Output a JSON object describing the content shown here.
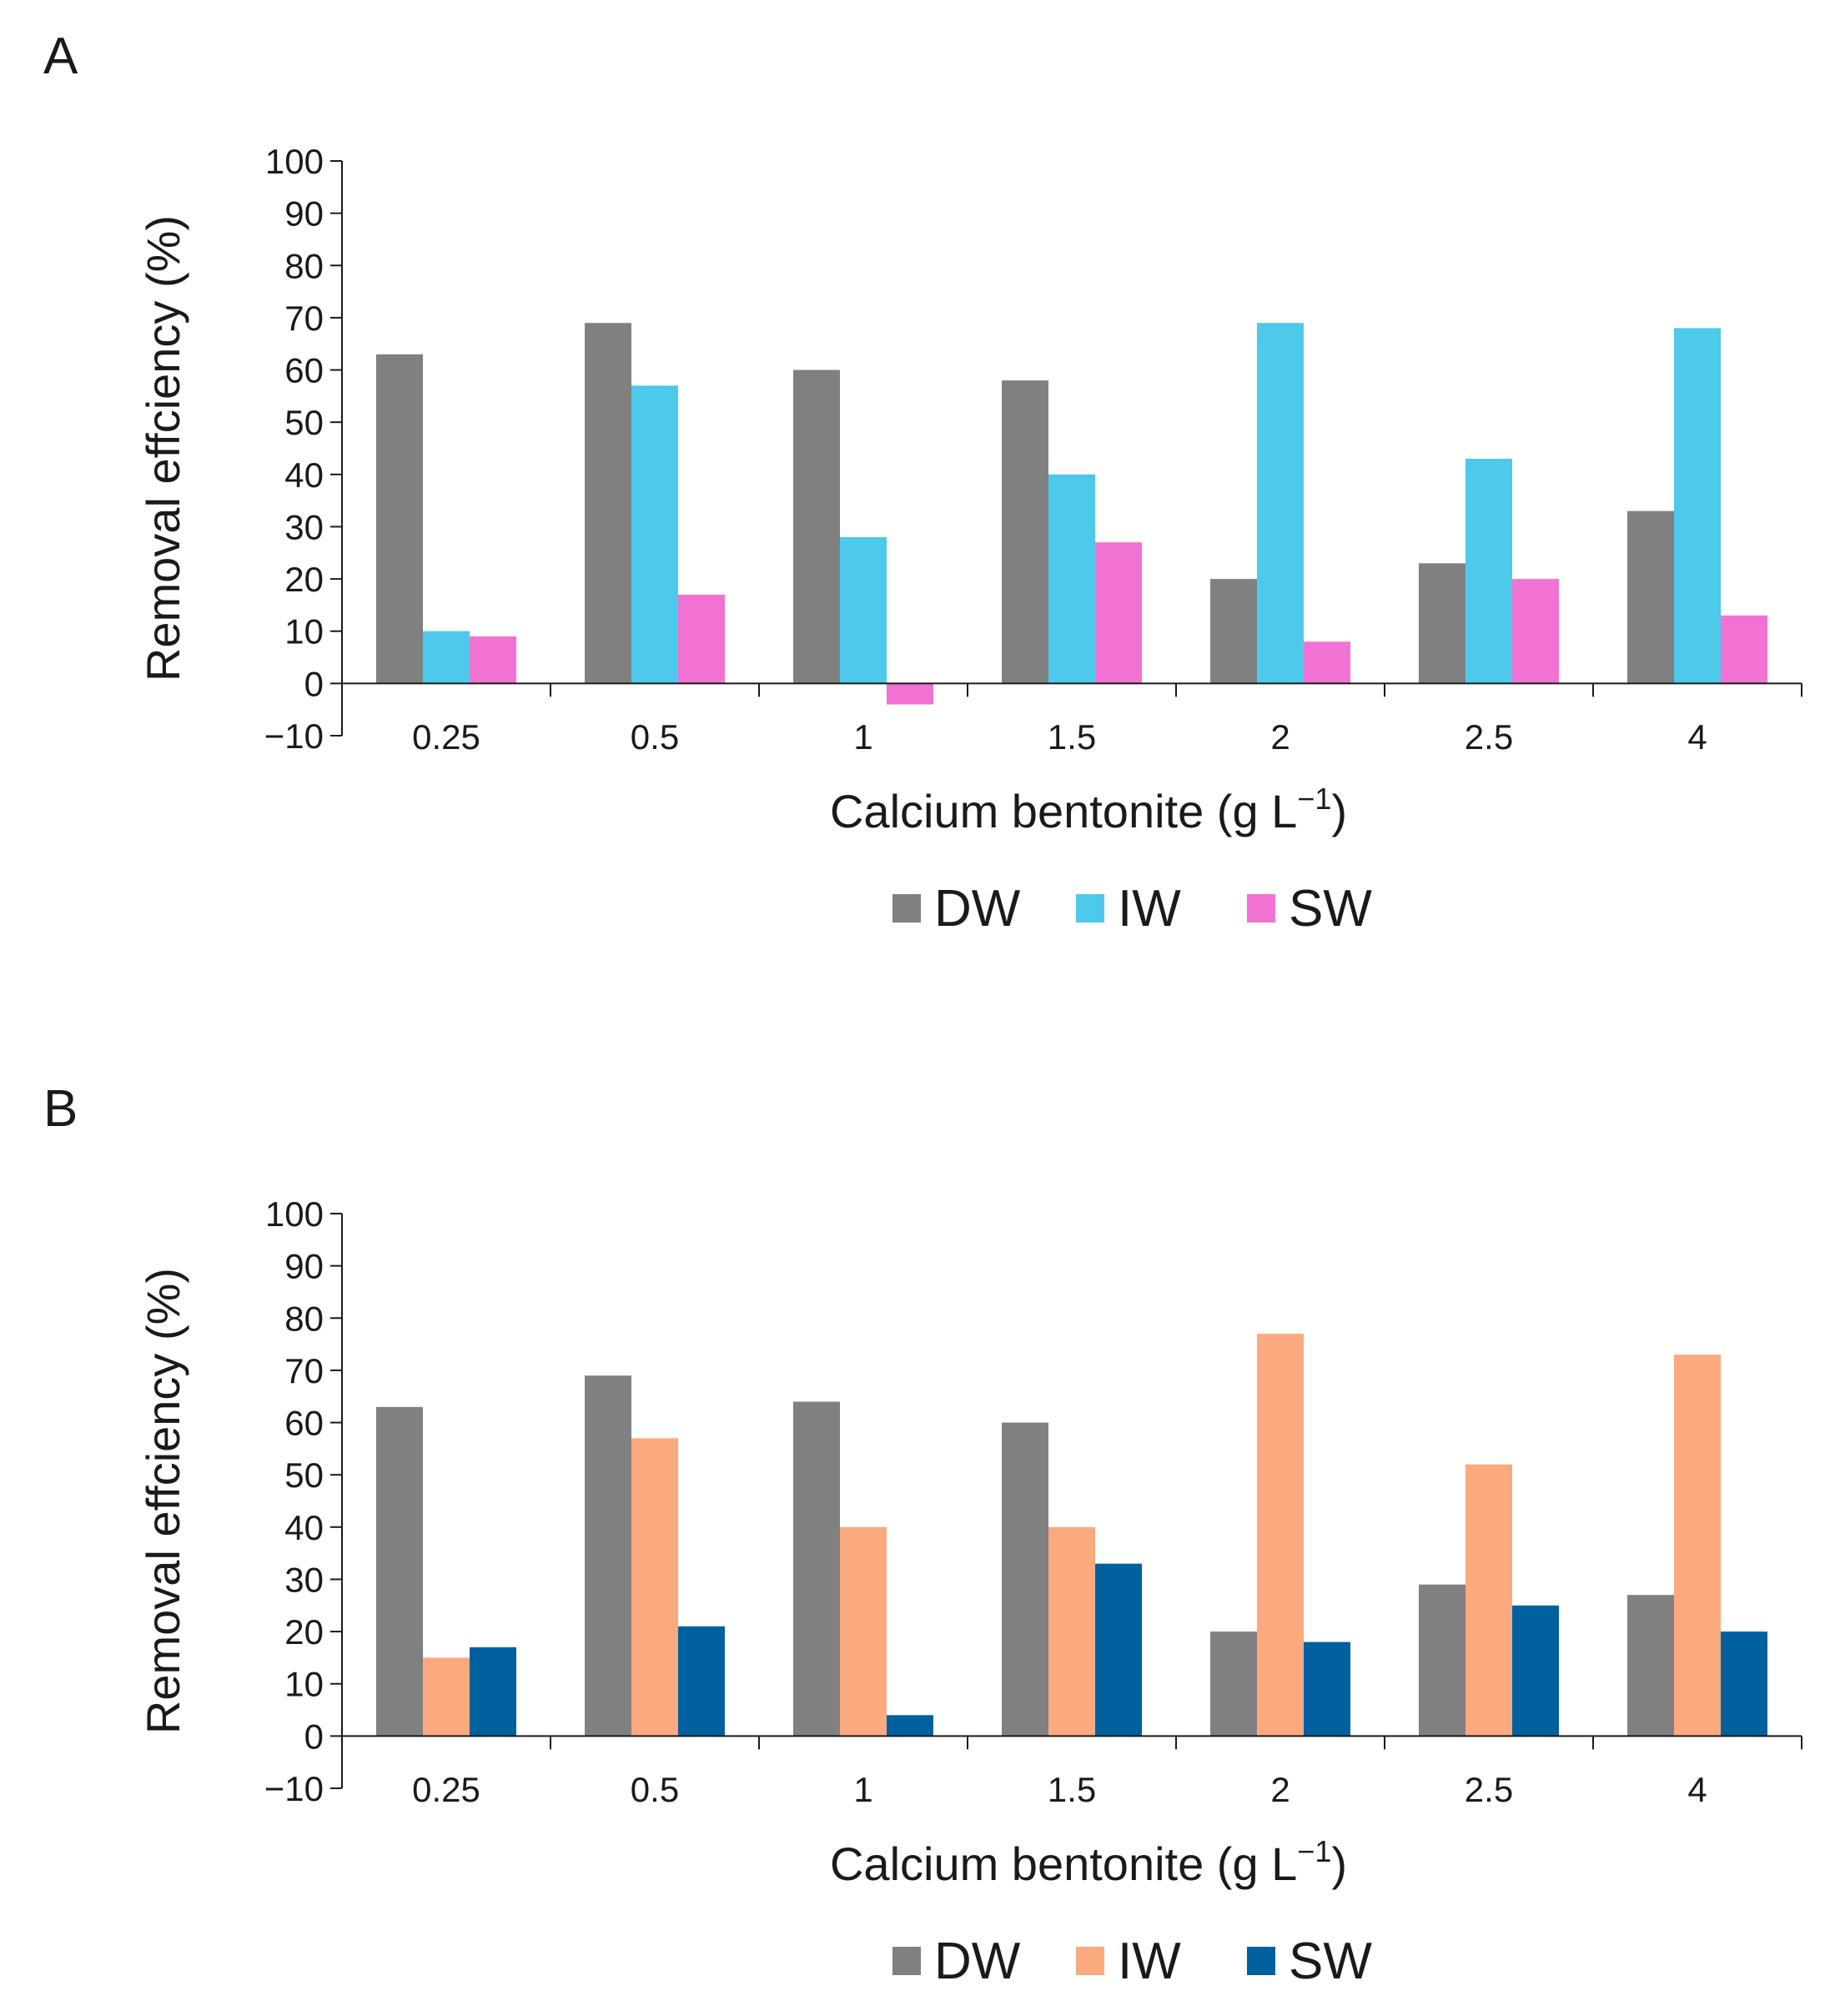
{
  "chart_data": [
    {
      "panel": "A",
      "type": "bar",
      "title": "",
      "xlabel": "Calcium bentonite (g L",
      "xlabel_sup": "−1",
      "xlabel_end": ")",
      "ylabel": "Removal effciency (%)",
      "ylim": [
        -10,
        100
      ],
      "yticks": [
        -10,
        0,
        10,
        20,
        30,
        40,
        50,
        60,
        70,
        80,
        90,
        100
      ],
      "grid": false,
      "legend_position": "bottom-center",
      "categories": [
        "0.25",
        "0.5",
        "1",
        "1.5",
        "2",
        "2.5",
        "4"
      ],
      "series": [
        {
          "name": "DW",
          "color": "#808080",
          "values": [
            63,
            69,
            60,
            58,
            20,
            23,
            33
          ]
        },
        {
          "name": "IW",
          "color": "#4dc9ec",
          "values": [
            10,
            57,
            28,
            40,
            69,
            43,
            68
          ]
        },
        {
          "name": "SW",
          "color": "#f272d4",
          "values": [
            9,
            17,
            -4,
            27,
            8,
            20,
            13
          ]
        }
      ]
    },
    {
      "panel": "B",
      "type": "bar",
      "title": "",
      "xlabel": "Calcium bentonite (g L",
      "xlabel_sup": "−1",
      "xlabel_end": ")",
      "ylabel": "Removal effciency (%)",
      "ylim": [
        -10,
        100
      ],
      "yticks": [
        -10,
        0,
        10,
        20,
        30,
        40,
        50,
        60,
        70,
        80,
        90,
        100
      ],
      "grid": false,
      "legend_position": "bottom-center",
      "categories": [
        "0.25",
        "0.5",
        "1",
        "1.5",
        "2",
        "2.5",
        "4"
      ],
      "series": [
        {
          "name": "DW",
          "color": "#808080",
          "values": [
            63,
            69,
            64,
            60,
            20,
            29,
            27
          ]
        },
        {
          "name": "IW",
          "color": "#fba97f",
          "values": [
            15,
            57,
            40,
            40,
            77,
            52,
            73
          ]
        },
        {
          "name": "SW",
          "color": "#00619f",
          "values": [
            17,
            21,
            4,
            33,
            18,
            25,
            20
          ]
        }
      ]
    }
  ]
}
